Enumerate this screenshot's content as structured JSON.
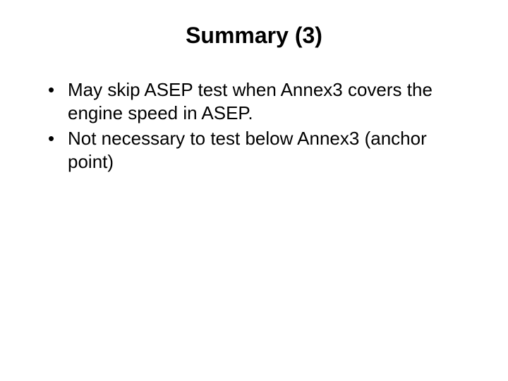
{
  "slide": {
    "title": "Summary (3)",
    "bullets": [
      "May skip ASEP test when Annex3 covers the engine speed in ASEP.",
      "Not necessary to test below Annex3 (anchor point)"
    ]
  },
  "styling": {
    "background_color": "#ffffff",
    "text_color": "#000000",
    "title_fontsize": 32,
    "title_fontweight": "bold",
    "body_fontsize": 26,
    "font_family": "Arial"
  }
}
